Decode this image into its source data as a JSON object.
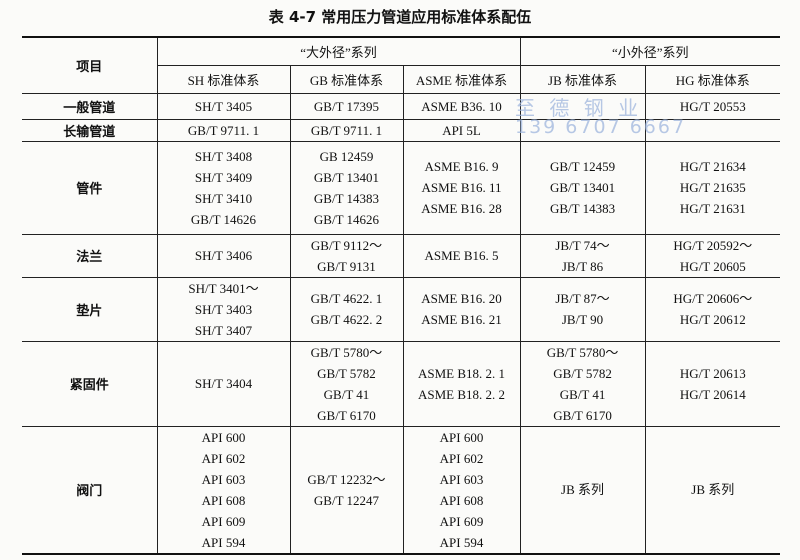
{
  "title": "表 4-7   常用压力管道应用标准体系配伍",
  "table": {
    "header": {
      "item": "项目",
      "groups": [
        "“大外径”系列",
        "“小外径”系列"
      ],
      "columns": [
        "SH 标准体系",
        "GB 标准体系",
        "ASME 标准体系",
        "JB 标准体系",
        "HG 标准体系"
      ]
    },
    "rows": [
      {
        "label": "一般管道",
        "cells": [
          [
            "SH/T 3405"
          ],
          [
            "GB/T 17395"
          ],
          [
            "ASME B36. 10"
          ],
          [],
          [
            "HG/T 20553"
          ]
        ]
      },
      {
        "label": "长输管道",
        "cells": [
          [
            "GB/T 9711. 1"
          ],
          [
            "GB/T 9711. 1"
          ],
          [
            "API 5L"
          ],
          [],
          []
        ]
      },
      {
        "label": "管件",
        "cells": [
          [
            "SH/T 3408",
            "SH/T 3409",
            "SH/T 3410",
            "GB/T 14626"
          ],
          [
            "GB 12459",
            "GB/T 13401",
            "GB/T 14383",
            "GB/T 14626"
          ],
          [
            "ASME B16. 9",
            "ASME B16. 11",
            "ASME B16. 28"
          ],
          [
            "GB/T 12459",
            "GB/T 13401",
            "GB/T 14383"
          ],
          [
            "HG/T 21634",
            "HG/T 21635",
            "HG/T 21631"
          ]
        ]
      },
      {
        "label": "法兰",
        "cells": [
          [
            "SH/T 3406"
          ],
          [
            "GB/T 9112～",
            "GB/T 9131"
          ],
          [
            "ASME B16. 5"
          ],
          [
            "JB/T 74～",
            "JB/T 86"
          ],
          [
            "HG/T 20592～",
            "HG/T 20605"
          ]
        ]
      },
      {
        "label": "垫片",
        "cells": [
          [
            "SH/T 3401～",
            "SH/T 3403",
            "SH/T 3407"
          ],
          [
            "GB/T 4622. 1",
            "GB/T 4622. 2"
          ],
          [
            "ASME B16. 20",
            "ASME B16. 21"
          ],
          [
            "JB/T 87～",
            "JB/T 90"
          ],
          [
            "HG/T 20606～",
            "HG/T 20612"
          ]
        ]
      },
      {
        "label": "紧固件",
        "cells": [
          [
            "SH/T 3404"
          ],
          [
            "GB/T 5780～",
            "GB/T 5782",
            "GB/T 41",
            "GB/T 6170"
          ],
          [
            "ASME B18. 2. 1",
            "ASME B18. 2. 2"
          ],
          [
            "GB/T 5780～",
            "GB/T 5782",
            "GB/T 41",
            "GB/T 6170"
          ],
          [
            "HG/T 20613",
            "HG/T 20614"
          ]
        ]
      },
      {
        "label": "阀门",
        "cells": [
          [
            "API 600",
            "API 602",
            "API 603",
            "API 608",
            "API 609",
            "API 594"
          ],
          [
            "GB/T 12232～",
            "GB/T 12247"
          ],
          [
            "API 600",
            "API 602",
            "API 603",
            "API 608",
            "API 609",
            "API 594"
          ],
          [
            "JB 系列"
          ],
          [
            "JB 系列"
          ]
        ]
      }
    ]
  },
  "watermark": {
    "brand": "至 德 钢 业",
    "phone": "139 6707 6667"
  }
}
